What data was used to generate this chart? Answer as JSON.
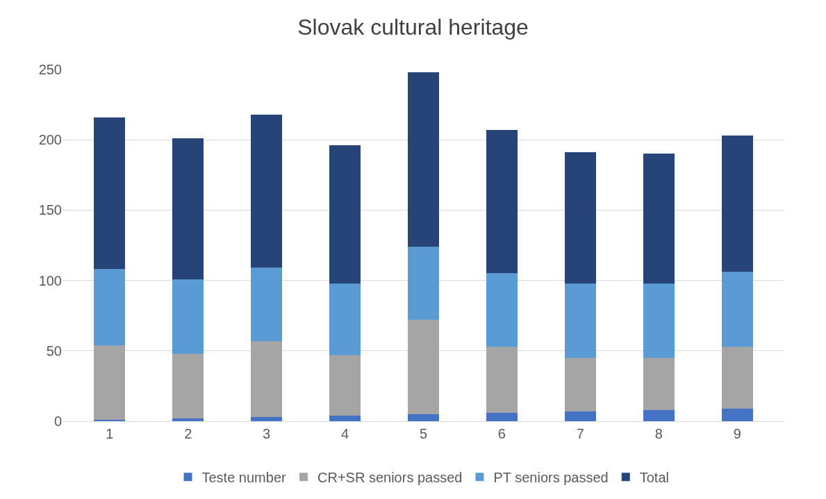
{
  "chart_data": {
    "type": "bar",
    "title": "Slovak cultural heritage",
    "categories": [
      "1",
      "2",
      "3",
      "4",
      "5",
      "6",
      "7",
      "8",
      "9"
    ],
    "stacked": true,
    "series": [
      {
        "name": "Teste number",
        "color": "#4472c4",
        "values": [
          1,
          2,
          3,
          4,
          5,
          6,
          7,
          8,
          9
        ]
      },
      {
        "name": "CR+SR seniors passed",
        "color": "#a5a5a5",
        "values": [
          53,
          46,
          54,
          43,
          67,
          47,
          38,
          37,
          44
        ]
      },
      {
        "name": "PT seniors passed",
        "color": "#5b9bd5",
        "values": [
          54,
          53,
          52,
          51,
          52,
          52,
          53,
          53,
          53
        ]
      },
      {
        "name": "Total",
        "color": "#264478",
        "values": [
          108,
          100,
          109,
          98,
          124,
          102,
          93,
          92,
          97
        ]
      }
    ],
    "ylim": [
      0,
      250
    ],
    "yticks": [
      0,
      50,
      100,
      150,
      200,
      250
    ],
    "grid": "y",
    "legend": "bottom"
  }
}
